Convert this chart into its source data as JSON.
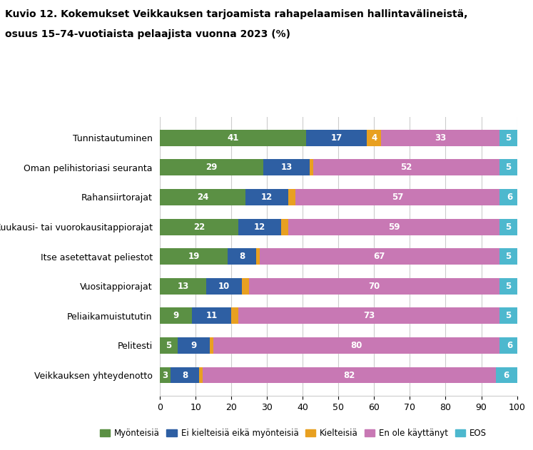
{
  "title_line1": "Kuvio 12. Kokemukset Veikkauksen tarjoamista rahapelaamisen hallintavälineistä,",
  "title_line2": "osuus 15–74-vuotiaista pelaajista vuonna 2023 (%)",
  "categories": [
    "Tunnistautuminen",
    "Oman pelihistoriasi seuranta",
    "Rahansiirtorajat",
    "Kuukausi- tai vuorokausitappiorajat",
    "Itse asetettavat peliestot",
    "Vuositappiorajat",
    "Peliaikamuistututin",
    "Pelitesti",
    "Veikkauksen yhteydenotto"
  ],
  "series": {
    "Myönteisiä": [
      41,
      29,
      24,
      22,
      19,
      13,
      9,
      5,
      3
    ],
    "Ei kielteisiä eikä myönteisiä": [
      17,
      13,
      12,
      12,
      8,
      10,
      11,
      9,
      8
    ],
    "Kielteisiä": [
      4,
      1,
      2,
      2,
      1,
      2,
      2,
      1,
      1
    ],
    "En ole käyttänyt": [
      33,
      52,
      57,
      59,
      67,
      70,
      73,
      80,
      82
    ],
    "EOS": [
      5,
      5,
      6,
      5,
      5,
      5,
      5,
      6,
      6
    ]
  },
  "label_threshold": 3,
  "colors": {
    "Myönteisiä": "#5B9044",
    "Ei kielteisiä eikä myönteisiä": "#2E5FA3",
    "Kielteisiä": "#E8A020",
    "En ole käyttänyt": "#C878B4",
    "EOS": "#4DB8CE"
  },
  "xlim": [
    0,
    100
  ],
  "xticks": [
    0,
    10,
    20,
    30,
    40,
    50,
    60,
    70,
    80,
    90,
    100
  ],
  "bar_height": 0.55,
  "figsize": [
    7.47,
    6.31
  ],
  "dpi": 100
}
